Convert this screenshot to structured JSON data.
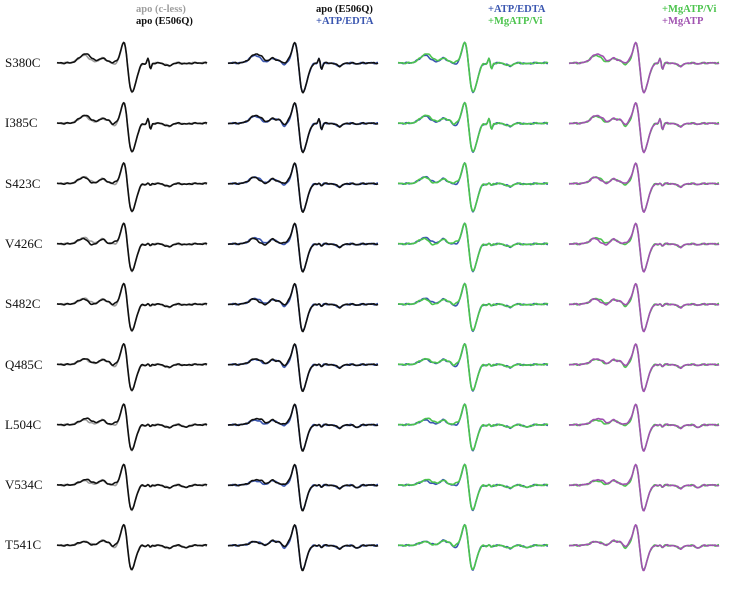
{
  "colors": {
    "gray": "#9e9e9e",
    "black": "#111111",
    "blue": "#3a56b0",
    "green": "#4cc44e",
    "purple": "#a052b0"
  },
  "mutants": [
    "S380C",
    "I385C",
    "S423C",
    "V426C",
    "S482C",
    "Q485C",
    "L504C",
    "V534C",
    "T541C"
  ],
  "panels": [
    {
      "legend": [
        {
          "text": "apo (c-less)",
          "color": "#9e9e9e"
        },
        {
          "text": "apo (E506Q)",
          "color": "#111111"
        }
      ],
      "series": [
        "gray",
        "black"
      ]
    },
    {
      "legend": [
        {
          "text": "apo (E506Q)",
          "color": "#111111"
        },
        {
          "text": "+ATP/EDTA",
          "color": "#3a56b0"
        }
      ],
      "series": [
        "blue",
        "black"
      ]
    },
    {
      "legend": [
        {
          "text": "+ATP/EDTA",
          "color": "#3a56b0"
        },
        {
          "text": "+MgATP/Vi",
          "color": "#4cc44e"
        }
      ],
      "series": [
        "blue",
        "green"
      ]
    },
    {
      "legend": [
        {
          "text": "+MgATP/Vi",
          "color": "#4cc44e"
        },
        {
          "text": "+MgATP",
          "color": "#a052b0"
        }
      ],
      "series": [
        "green",
        "purple"
      ]
    }
  ]
}
